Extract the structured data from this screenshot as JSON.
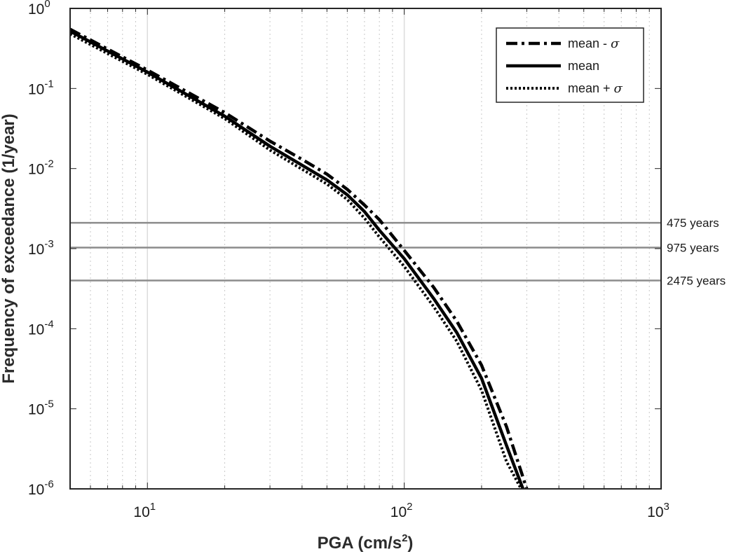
{
  "chart_data": {
    "type": "line",
    "xscale": "log",
    "yscale": "log",
    "xlim": [
      5,
      1000
    ],
    "ylim": [
      1e-06,
      1
    ],
    "xlabel_main": "PGA (cm/s",
    "xlabel_exp": "2",
    "xlabel_end": ")",
    "ylabel": "Frequency of exceedance (1/year)",
    "x_ticks": [
      {
        "base": "10",
        "exp": "1",
        "value": 10
      },
      {
        "base": "10",
        "exp": "2",
        "value": 100
      },
      {
        "base": "10",
        "exp": "3",
        "value": 1000
      }
    ],
    "y_ticks": [
      {
        "base": "10",
        "exp": "0",
        "value": 1
      },
      {
        "base": "10",
        "exp": "-1",
        "value": 0.1
      },
      {
        "base": "10",
        "exp": "-2",
        "value": 0.01
      },
      {
        "base": "10",
        "exp": "-3",
        "value": 0.001
      },
      {
        "base": "10",
        "exp": "-4",
        "value": 0.0001
      },
      {
        "base": "10",
        "exp": "-5",
        "value": 1e-05
      },
      {
        "base": "10",
        "exp": "-6",
        "value": 1e-06
      }
    ],
    "series": [
      {
        "name": "mean - σ",
        "legend_label": "mean - ",
        "legend_symbol": "σ",
        "style": "dashdot",
        "x": [
          5,
          10,
          20,
          30,
          40,
          50,
          60,
          70,
          80,
          100,
          130,
          160,
          200,
          250,
          300
        ],
        "y": [
          0.55,
          0.17,
          0.05,
          0.022,
          0.013,
          0.0085,
          0.0055,
          0.0035,
          0.0023,
          0.00095,
          0.00033,
          0.000125,
          3.5e-05,
          6e-06,
          1e-06
        ]
      },
      {
        "name": "mean",
        "legend_label": "mean",
        "legend_symbol": "",
        "style": "solid",
        "x": [
          5,
          10,
          20,
          30,
          40,
          50,
          60,
          70,
          80,
          100,
          130,
          160,
          200,
          250,
          290
        ],
        "y": [
          0.52,
          0.16,
          0.045,
          0.019,
          0.011,
          0.0072,
          0.0047,
          0.0029,
          0.0017,
          0.00075,
          0.00024,
          9e-05,
          2.4e-05,
          3.5e-06,
          1e-06
        ]
      },
      {
        "name": "mean + σ",
        "legend_label": "mean + ",
        "legend_symbol": "σ",
        "style": "dotted",
        "x": [
          5,
          10,
          20,
          30,
          40,
          50,
          60,
          70,
          80,
          100,
          130,
          160,
          200,
          250,
          285
        ],
        "y": [
          0.48,
          0.15,
          0.042,
          0.017,
          0.0098,
          0.0064,
          0.0041,
          0.0024,
          0.0014,
          0.0006,
          0.00019,
          7e-05,
          1.7e-05,
          2.2e-06,
          1e-06
        ]
      }
    ],
    "reference_lines": [
      {
        "label": "475 years",
        "value": 0.0021
      },
      {
        "label": "975 years",
        "value": 0.00103
      },
      {
        "label": "2475 years",
        "value": 0.0004
      }
    ],
    "legend_position": "top-right",
    "grid": true
  }
}
